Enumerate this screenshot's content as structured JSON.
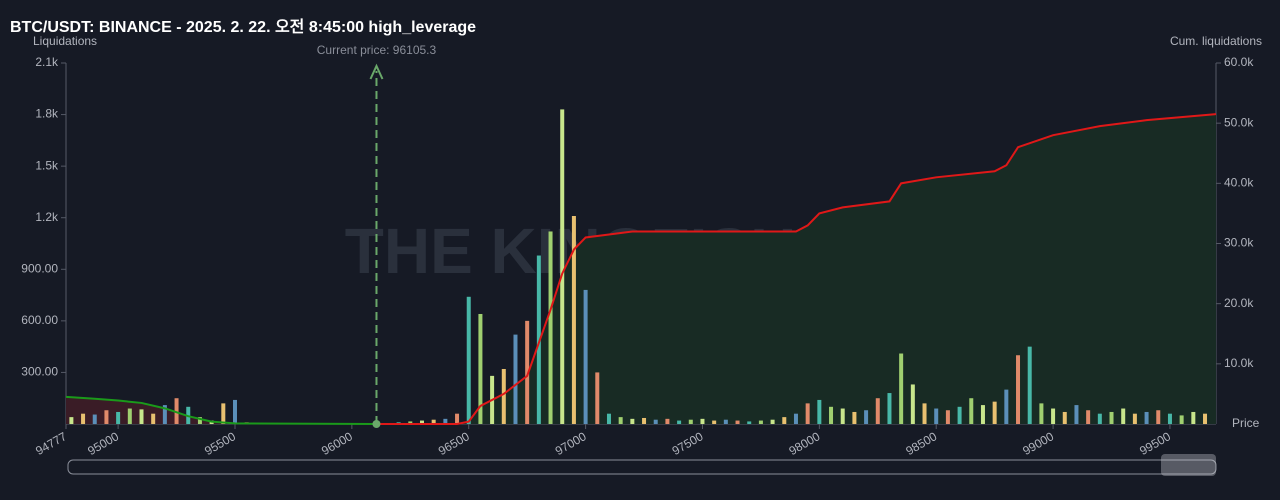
{
  "chart_data": {
    "type": "bar",
    "title": "BTC/USDT: BINANCE - 2025. 2. 22. 오전 8:45:00 high_leverage",
    "y_label": "Liquidations",
    "y2_label": "Cum. liquidations",
    "x_label": "Price",
    "watermark": "THE KINGFISHER",
    "current_price": {
      "value": 96105.3,
      "label": "Current price: 96105.3"
    },
    "xlim": [
      94777,
      99697
    ],
    "xticks": [
      94777,
      95000,
      95500,
      96000,
      96500,
      97000,
      97500,
      98000,
      98500,
      99000,
      99500
    ],
    "ylim": [
      0,
      2100
    ],
    "yticks": [
      {
        "value": 300,
        "label": "300.00"
      },
      {
        "value": 600,
        "label": "600.00"
      },
      {
        "value": 900,
        "label": "900.00"
      },
      {
        "value": 1200,
        "label": "1.2k"
      },
      {
        "value": 1500,
        "label": "1.5k"
      },
      {
        "value": 1800,
        "label": "1.8k"
      },
      {
        "value": 2100,
        "label": "2.1k"
      }
    ],
    "y2lim": [
      0,
      60000
    ],
    "y2ticks": [
      {
        "value": 10000,
        "label": "10.0k"
      },
      {
        "value": 20000,
        "label": "20.0k"
      },
      {
        "value": 30000,
        "label": "30.0k"
      },
      {
        "value": 40000,
        "label": "40.0k"
      },
      {
        "value": 50000,
        "label": "50.0k"
      },
      {
        "value": 60000,
        "label": "60.0k"
      }
    ],
    "bar_colors": [
      "#c8e68c",
      "#e8c070",
      "#5b8fb9",
      "#e08a6a",
      "#48b8a8",
      "#a0d070"
    ],
    "x": [
      94800,
      94850,
      94900,
      94950,
      95000,
      95050,
      95100,
      95150,
      95200,
      95250,
      95300,
      95350,
      95400,
      95450,
      95500,
      95550,
      95600,
      95650,
      95700,
      95750,
      95800,
      95850,
      95900,
      95950,
      96000,
      96050,
      96100,
      96150,
      96200,
      96250,
      96300,
      96350,
      96400,
      96450,
      96500,
      96550,
      96600,
      96650,
      96700,
      96750,
      96800,
      96850,
      96900,
      96950,
      97000,
      97050,
      97100,
      97150,
      97200,
      97250,
      97300,
      97350,
      97400,
      97450,
      97500,
      97550,
      97600,
      97650,
      97700,
      97750,
      97800,
      97850,
      97900,
      97950,
      98000,
      98050,
      98100,
      98150,
      98200,
      98250,
      98300,
      98350,
      98400,
      98450,
      98500,
      98550,
      98600,
      98650,
      98700,
      98750,
      98800,
      98850,
      98900,
      98950,
      99000,
      99050,
      99100,
      99150,
      99200,
      99250,
      99300,
      99350,
      99400,
      99450,
      99500,
      99550,
      99600,
      99650
    ],
    "values": [
      40,
      60,
      55,
      80,
      70,
      90,
      85,
      60,
      110,
      150,
      100,
      40,
      20,
      120,
      140,
      10,
      5,
      0,
      0,
      0,
      0,
      0,
      0,
      0,
      0,
      0,
      0,
      5,
      10,
      15,
      20,
      25,
      30,
      60,
      740,
      640,
      280,
      320,
      520,
      600,
      980,
      1120,
      1830,
      1210,
      780,
      300,
      60,
      40,
      30,
      35,
      25,
      30,
      20,
      25,
      30,
      20,
      25,
      20,
      15,
      20,
      25,
      40,
      60,
      120,
      140,
      100,
      90,
      70,
      80,
      150,
      180,
      410,
      230,
      120,
      90,
      80,
      100,
      150,
      110,
      130,
      200,
      400,
      450,
      120,
      90,
      70,
      110,
      80,
      60,
      70,
      90,
      60,
      70,
      80,
      60,
      50,
      70,
      60
    ],
    "series": [
      {
        "color": "#1a9a1a",
        "area": "#3a1c26",
        "axis": "y2",
        "x": [
          94777,
          94900,
          95000,
          95100,
          95200,
          95300,
          95400,
          95500,
          96105
        ],
        "values": [
          4500,
          4200,
          3900,
          3500,
          2600,
          1300,
          400,
          100,
          0
        ]
      },
      {
        "color": "#e01818",
        "area": "#182b24",
        "axis": "y2",
        "x": [
          96105,
          96450,
          96500,
          96550,
          96650,
          96750,
          96850,
          96900,
          96950,
          97000,
          97100,
          97200,
          97500,
          97900,
          97950,
          98000,
          98100,
          98300,
          98350,
          98500,
          98750,
          98800,
          98850,
          99000,
          99200,
          99400,
          99697
        ],
        "values": [
          0,
          0,
          400,
          3000,
          5000,
          8000,
          19000,
          25000,
          29000,
          31000,
          31500,
          32000,
          32000,
          32000,
          33000,
          35000,
          36000,
          37000,
          40000,
          41000,
          42000,
          43000,
          46000,
          48000,
          49500,
          50500,
          51500
        ]
      }
    ]
  }
}
